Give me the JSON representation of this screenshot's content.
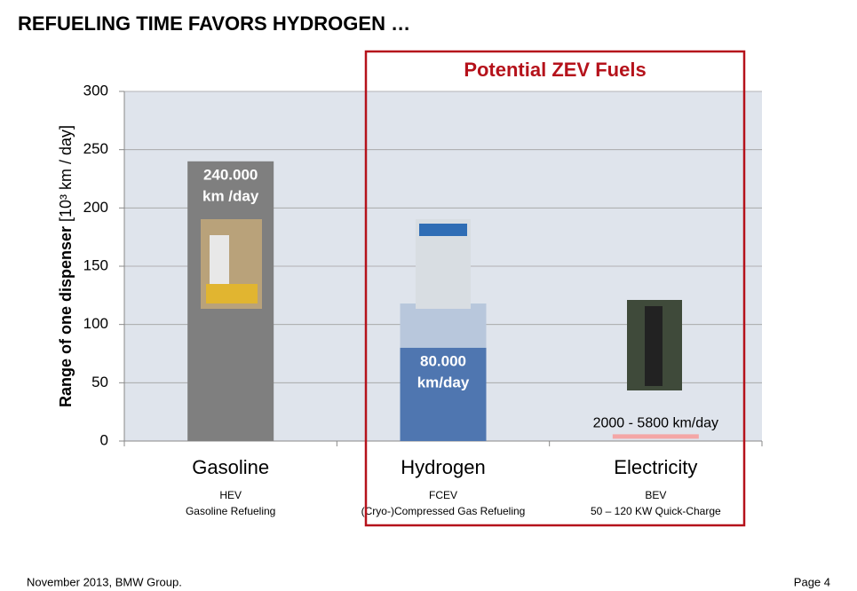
{
  "header": {
    "title": "REFUELING TIME FAVORS HYDROGEN …"
  },
  "chart_data": {
    "type": "bar",
    "ylabel": "Range of one dispenser",
    "yunit": "[10³ km / day]",
    "highlight_title": "Potential ZEV Fuels",
    "categories": [
      "Gasoline",
      "Hydrogen",
      "Electricity"
    ],
    "sublabels": [
      "HEV",
      "FCEV",
      "BEV"
    ],
    "descriptions": [
      "Gasoline Refueling",
      "(Cryo-)Compressed Gas Refueling",
      "50 – 120 KW Quick-Charge"
    ],
    "lows": [
      0,
      0,
      2
    ],
    "values": [
      240,
      80,
      5.8
    ],
    "value_labels": [
      [
        "240.000",
        "km /day"
      ],
      [
        "80.000",
        "km/day"
      ],
      [
        "2000 - 5800 km/day"
      ]
    ],
    "upper": [
      null,
      118,
      null
    ],
    "colors": [
      "#7f7f7f",
      "#4f76b0",
      "#f4a6a6"
    ],
    "upper_color": "#b8c7dc",
    "ylim": [
      0,
      300
    ],
    "yticks": [
      0,
      50,
      100,
      150,
      200,
      250,
      300
    ],
    "grid": true
  },
  "footer": {
    "left": "November 2013, BMW Group.",
    "right": "Page 4"
  }
}
